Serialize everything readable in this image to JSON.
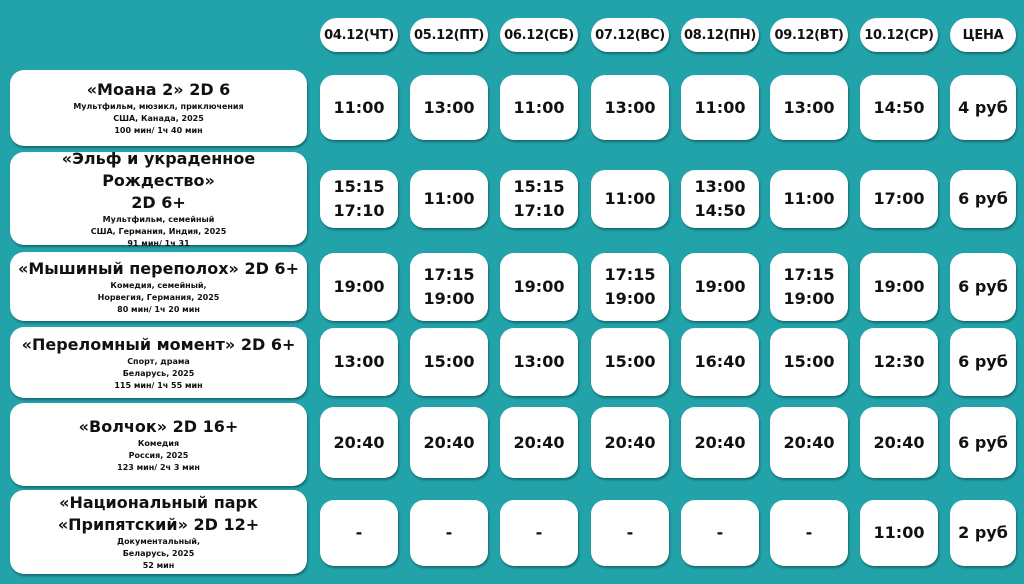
{
  "colors": {
    "background": "#22a3aa",
    "card": "#ffffff"
  },
  "header": {
    "days": [
      "04.12(ЧТ)",
      "05.12(ПТ)",
      "06.12(СБ)",
      "07.12(ВС)",
      "08.12(ПН)",
      "09.12(ВТ)",
      "10.12(СР)"
    ],
    "price_label": "ЦЕНА"
  },
  "movies": [
    {
      "title": [
        "«Моана 2» 2D 6"
      ],
      "meta": [
        "Мультфильм, мюзикл, приключения",
        "США, Канада, 2025",
        "100 мин/ 1ч 40 мин"
      ],
      "times": [
        [
          "11:00"
        ],
        [
          "13:00"
        ],
        [
          "11:00"
        ],
        [
          "13:00"
        ],
        [
          "11:00"
        ],
        [
          "13:00"
        ],
        [
          "14:50"
        ]
      ],
      "price": "4 руб"
    },
    {
      "title": [
        "«Эльф и украденное Рождество»",
        "2D 6+"
      ],
      "meta": [
        "Мультфильм, семейный",
        "США, Германия, Индия, 2025",
        "91 мин/ 1ч 31"
      ],
      "times": [
        [
          "15:15",
          "17:10"
        ],
        [
          "11:00"
        ],
        [
          "15:15",
          "17:10"
        ],
        [
          "11:00"
        ],
        [
          "13:00",
          "14:50"
        ],
        [
          "11:00"
        ],
        [
          "17:00"
        ]
      ],
      "price": "6 руб"
    },
    {
      "title": [
        "«Мышиный переполох» 2D 6+"
      ],
      "meta": [
        "Комедия, семейный,",
        "Норвегия, Германия, 2025",
        "80 мин/ 1ч 20 мин"
      ],
      "times": [
        [
          "19:00"
        ],
        [
          "17:15",
          "19:00"
        ],
        [
          "19:00"
        ],
        [
          "17:15",
          "19:00"
        ],
        [
          "19:00"
        ],
        [
          "17:15",
          "19:00"
        ],
        [
          "19:00"
        ]
      ],
      "price": "6 руб"
    },
    {
      "title": [
        "«Переломный момент» 2D 6+"
      ],
      "meta": [
        "Спорт, драма",
        "Беларусь, 2025",
        "115 мин/ 1ч 55 мин"
      ],
      "times": [
        [
          "13:00"
        ],
        [
          "15:00"
        ],
        [
          "13:00"
        ],
        [
          "15:00"
        ],
        [
          "16:40"
        ],
        [
          "15:00"
        ],
        [
          "12:30"
        ]
      ],
      "price": "6 руб"
    },
    {
      "title": [
        "«Волчок» 2D 16+"
      ],
      "meta": [
        "Комедия",
        "Россия, 2025",
        "123 мин/ 2ч 3 мин"
      ],
      "times": [
        [
          "20:40"
        ],
        [
          "20:40"
        ],
        [
          "20:40"
        ],
        [
          "20:40"
        ],
        [
          "20:40"
        ],
        [
          "20:40"
        ],
        [
          "20:40"
        ]
      ],
      "price": "6 руб"
    },
    {
      "title": [
        "«Национальный парк",
        "«Припятский» 2D 12+"
      ],
      "meta": [
        "Документальный,",
        "Беларусь, 2025",
        "52 мин"
      ],
      "times": [
        [
          "-"
        ],
        [
          "-"
        ],
        [
          "-"
        ],
        [
          "-"
        ],
        [
          "-"
        ],
        [
          "-"
        ],
        [
          "11:00"
        ]
      ],
      "price": "2 руб"
    }
  ]
}
